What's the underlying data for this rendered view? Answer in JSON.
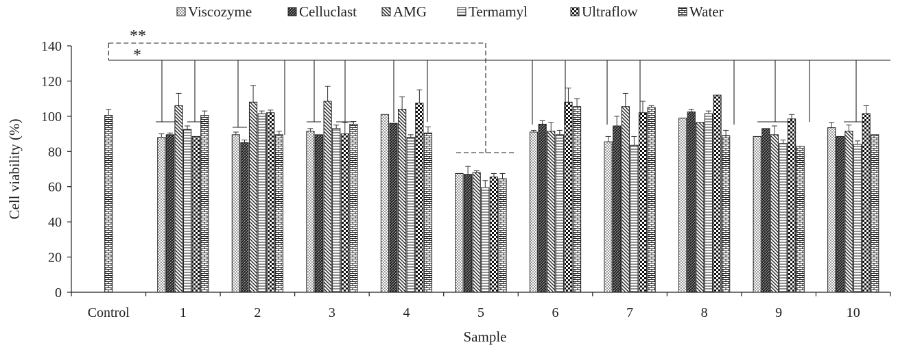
{
  "chart_data": {
    "type": "bar",
    "title": "",
    "xlabel": "Sample",
    "ylabel": "Cell viability  (%)",
    "ylim": [
      0,
      140
    ],
    "yticks": [
      0,
      20,
      40,
      60,
      80,
      100,
      120,
      140
    ],
    "categories": [
      "Control",
      "1",
      "2",
      "3",
      "4",
      "5",
      "6",
      "7",
      "8",
      "9",
      "10"
    ],
    "legend_position": "top",
    "control": {
      "name": "Water",
      "value": 100.5,
      "error": 3.5
    },
    "series": [
      {
        "name": "Viscozyme",
        "pattern": "dots",
        "values": [
          null,
          88,
          89.5,
          91.5,
          101,
          67.5,
          91,
          85.5,
          99,
          88.5,
          93.5
        ],
        "errors": [
          null,
          2,
          1.5,
          1.5,
          0,
          0,
          1,
          3,
          0,
          0,
          3
        ]
      },
      {
        "name": "Celluclast",
        "pattern": "dense",
        "values": [
          null,
          89.5,
          85,
          89.5,
          96,
          67,
          95.5,
          94.5,
          102.5,
          93,
          88.5
        ],
        "errors": [
          null,
          1,
          1.5,
          0,
          0,
          4.5,
          2,
          5.5,
          1.5,
          0,
          0
        ]
      },
      {
        "name": "AMG",
        "pattern": "diagonal",
        "values": [
          null,
          106,
          108,
          108.5,
          104,
          68,
          91.5,
          105.5,
          96.5,
          89.5,
          91.5
        ],
        "errors": [
          null,
          7,
          9.5,
          8.5,
          7,
          1,
          5,
          7.5,
          0,
          5,
          3.5
        ]
      },
      {
        "name": "Termamyl",
        "pattern": "horizontal",
        "values": [
          null,
          92.5,
          101.5,
          93,
          88,
          59.5,
          89.5,
          83.5,
          101.5,
          84.5,
          84
        ],
        "errors": [
          null,
          2,
          1.5,
          2,
          1.5,
          4,
          2.5,
          5,
          1.5,
          2,
          2
        ]
      },
      {
        "name": "Ultraflow",
        "pattern": "checker",
        "values": [
          null,
          88.5,
          102,
          90,
          107.5,
          65.5,
          108,
          102,
          112,
          98.5,
          101.5
        ],
        "errors": [
          null,
          0,
          1.5,
          6.5,
          7.5,
          2,
          8,
          6.5,
          0,
          2.5,
          4.5
        ]
      },
      {
        "name": "Water",
        "pattern": "brick",
        "values": [
          null,
          100.5,
          89.5,
          95.5,
          90.5,
          64.5,
          105.5,
          105,
          89,
          83,
          89.5
        ],
        "errors": [
          null,
          2.5,
          2,
          1.5,
          3.5,
          3,
          4.5,
          1,
          3,
          0,
          0
        ]
      }
    ],
    "annotations": {
      "double_star": "**",
      "single_star": "*"
    },
    "colors": {
      "bar_stroke": "#222222",
      "bar_fill": "#ffffff",
      "pattern": "#222222"
    }
  }
}
